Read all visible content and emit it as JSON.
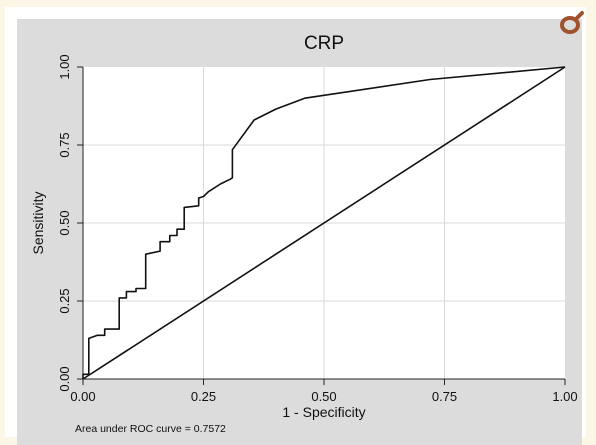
{
  "chart_data": {
    "type": "line",
    "title": "CRP",
    "xlabel": "1 - Specificity",
    "ylabel": "Sensitivity",
    "xlim": [
      0,
      1
    ],
    "ylim": [
      0,
      1
    ],
    "xticks": [
      "0.00",
      "0.25",
      "0.50",
      "0.75",
      "1.00"
    ],
    "yticks": [
      "0.00",
      "0.25",
      "0.50",
      "0.75",
      "1.00"
    ],
    "grid": true,
    "note": "Area under ROC curve = 0.7572",
    "series": [
      {
        "values": [
          [
            0,
            0
          ],
          [
            0,
            0.015
          ],
          [
            0.012,
            0.015
          ],
          [
            0.012,
            0.13
          ],
          [
            0.03,
            0.14
          ],
          [
            0.045,
            0.14
          ],
          [
            0.045,
            0.16
          ],
          [
            0.075,
            0.16
          ],
          [
            0.075,
            0.26
          ],
          [
            0.09,
            0.26
          ],
          [
            0.09,
            0.28
          ],
          [
            0.11,
            0.28
          ],
          [
            0.11,
            0.29
          ],
          [
            0.13,
            0.29
          ],
          [
            0.13,
            0.4
          ],
          [
            0.16,
            0.41
          ],
          [
            0.16,
            0.44
          ],
          [
            0.18,
            0.44
          ],
          [
            0.18,
            0.46
          ],
          [
            0.195,
            0.46
          ],
          [
            0.195,
            0.48
          ],
          [
            0.21,
            0.48
          ],
          [
            0.21,
            0.55
          ],
          [
            0.24,
            0.555
          ],
          [
            0.24,
            0.58
          ],
          [
            0.25,
            0.585
          ],
          [
            0.26,
            0.6
          ],
          [
            0.285,
            0.625
          ],
          [
            0.305,
            0.64
          ],
          [
            0.31,
            0.645
          ],
          [
            0.31,
            0.735
          ],
          [
            0.355,
            0.83
          ],
          [
            0.4,
            0.865
          ],
          [
            0.46,
            0.9
          ],
          [
            0.72,
            0.96
          ],
          [
            1.0,
            1.0
          ]
        ]
      },
      {
        "values": [
          [
            0,
            0
          ],
          [
            1,
            1
          ]
        ]
      }
    ]
  },
  "logo": {
    "icon": "stylized-o-logo-icon",
    "color": "#a0522d"
  }
}
